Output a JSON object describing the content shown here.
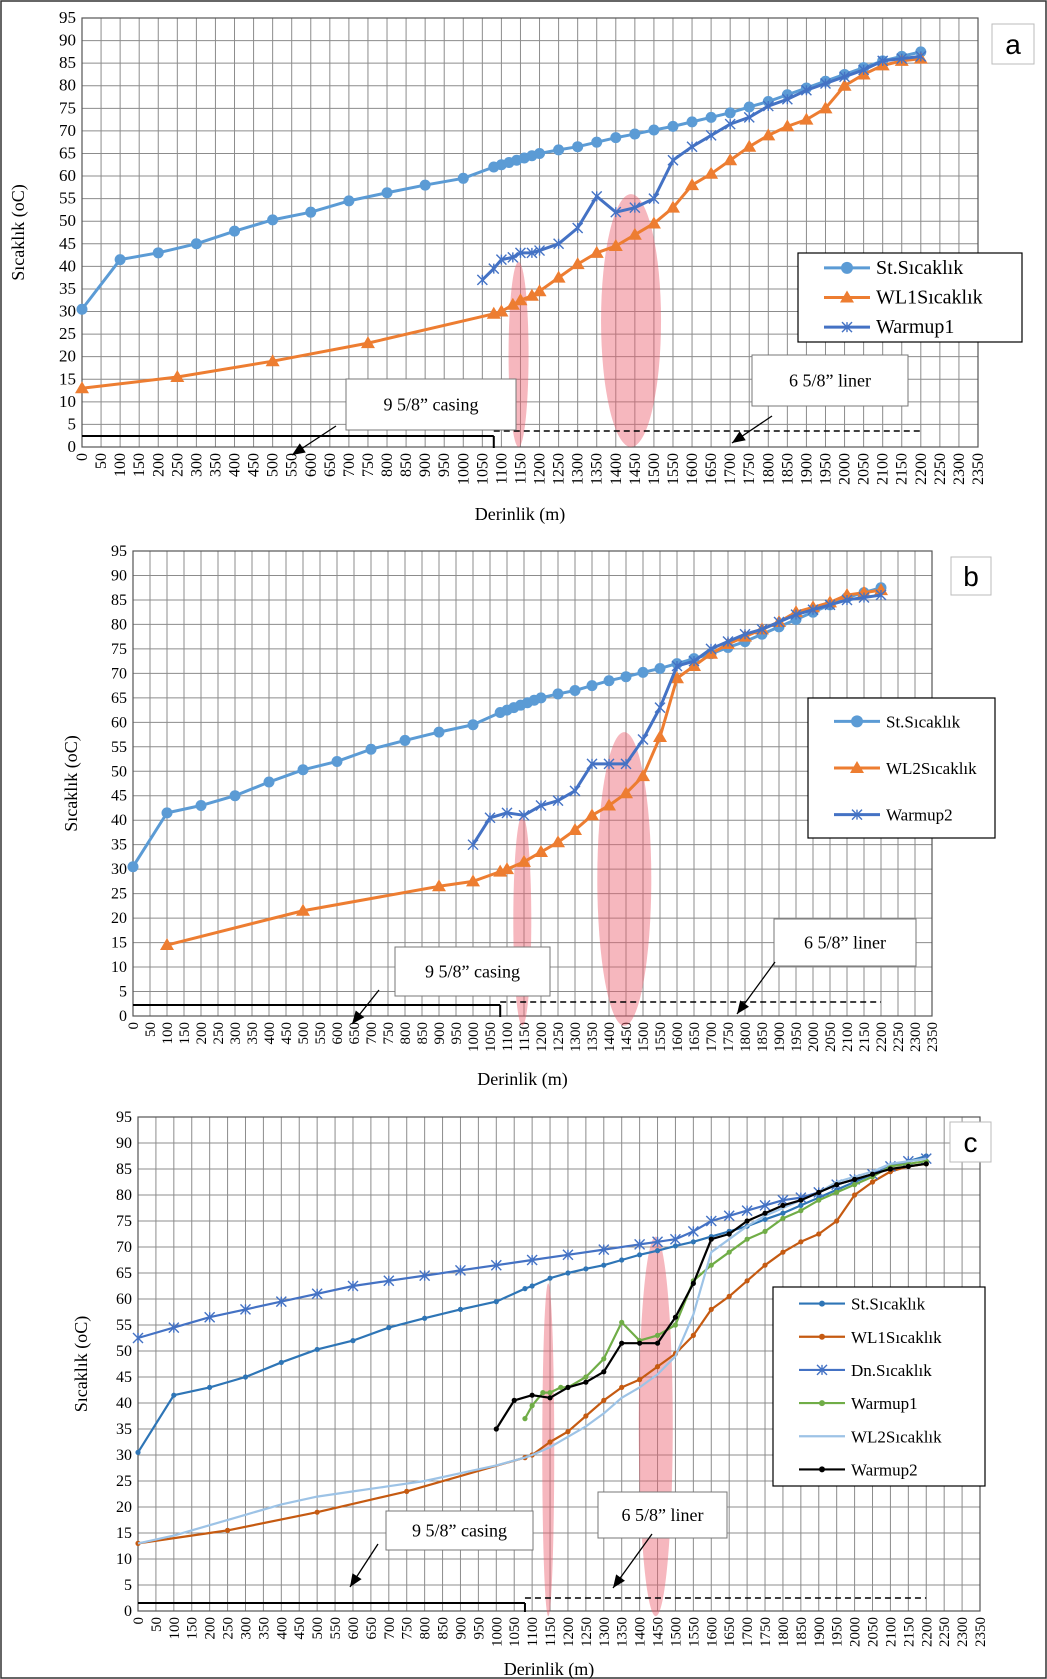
{
  "chart_data": [
    {
      "panel": "a",
      "type": "line",
      "xlabel": "Derinlik (m)",
      "ylabel": "Sıcaklık (oC)",
      "xlim": [
        0,
        2350
      ],
      "xstep": 50,
      "ylim": [
        0,
        95
      ],
      "ystep": 5,
      "grid": true,
      "legend_position": "right",
      "series": [
        {
          "name": "St.Sıcaklık",
          "color": "#5B9BD5",
          "marker": "circle",
          "x": [
            0,
            100,
            200,
            300,
            400,
            500,
            600,
            700,
            800,
            900,
            1000,
            1080,
            1100,
            1120,
            1140,
            1160,
            1180,
            1200,
            1250,
            1300,
            1350,
            1400,
            1450,
            1500,
            1550,
            1600,
            1650,
            1700,
            1750,
            1800,
            1850,
            1900,
            1950,
            2000,
            2050,
            2100,
            2150,
            2200
          ],
          "y": [
            30.5,
            41.5,
            43,
            45,
            47.8,
            50.3,
            52,
            54.5,
            56.3,
            58,
            59.5,
            62,
            62.5,
            63,
            63.5,
            64,
            64.5,
            65,
            65.8,
            66.5,
            67.5,
            68.5,
            69.3,
            70.2,
            71,
            72,
            73,
            74,
            75.3,
            76.5,
            78,
            79.5,
            81,
            82.5,
            84,
            85.5,
            86.5,
            87.5
          ]
        },
        {
          "name": "WL1Sıcaklık",
          "color": "#ED7D31",
          "marker": "triangle",
          "x": [
            0,
            250,
            500,
            750,
            1080,
            1100,
            1130,
            1150,
            1180,
            1200,
            1250,
            1300,
            1350,
            1400,
            1450,
            1500,
            1550,
            1600,
            1650,
            1700,
            1750,
            1800,
            1850,
            1900,
            1950,
            2000,
            2050,
            2100,
            2150,
            2200
          ],
          "y": [
            13,
            15.5,
            19,
            23,
            29.5,
            30,
            31.5,
            32.5,
            33.5,
            34.5,
            37.5,
            40.5,
            43,
            44.5,
            47,
            49.5,
            53,
            58,
            60.5,
            63.5,
            66.5,
            69,
            71,
            72.5,
            75,
            80,
            82.5,
            84.5,
            85.5,
            86
          ]
        },
        {
          "name": "Warmup1",
          "color": "#4472C4",
          "marker": "x",
          "x": [
            1050,
            1080,
            1100,
            1130,
            1150,
            1180,
            1200,
            1250,
            1300,
            1350,
            1400,
            1450,
            1500,
            1550,
            1600,
            1650,
            1700,
            1750,
            1800,
            1850,
            1900,
            1950,
            2000,
            2050,
            2100,
            2150,
            2200
          ],
          "y": [
            37,
            39.5,
            41.5,
            42,
            43,
            43,
            43.5,
            45,
            48.5,
            55.5,
            52,
            53,
            55,
            63.5,
            66.5,
            69,
            71.5,
            73,
            75.5,
            77,
            79,
            80.5,
            82,
            83.5,
            85.5,
            86,
            86.5
          ]
        }
      ],
      "highlights": [
        {
          "x": 1145,
          "y": [
            0,
            41
          ]
        },
        {
          "x": 1440,
          "y": [
            0,
            56
          ]
        }
      ],
      "annotations": [
        {
          "text": "9 5/8” casing",
          "from": 0,
          "to": 1080,
          "style": "solid"
        },
        {
          "text": "6 5/8” liner",
          "from": 1080,
          "to": 2200,
          "style": "dashed"
        }
      ],
      "panel_label": "a"
    },
    {
      "panel": "b",
      "type": "line",
      "xlabel": "Derinlik (m)",
      "ylabel": "Sıcaklık (oC)",
      "xlim": [
        0,
        2350
      ],
      "xstep": 50,
      "ylim": [
        0,
        95
      ],
      "ystep": 5,
      "grid": true,
      "legend_position": "right",
      "series": [
        {
          "name": "St.Sıcaklık",
          "color": "#5B9BD5",
          "marker": "circle",
          "x": [
            0,
            100,
            200,
            300,
            400,
            500,
            600,
            700,
            800,
            900,
            1000,
            1080,
            1100,
            1120,
            1140,
            1160,
            1180,
            1200,
            1250,
            1300,
            1350,
            1400,
            1450,
            1500,
            1550,
            1600,
            1650,
            1700,
            1750,
            1800,
            1850,
            1900,
            1950,
            2000,
            2050,
            2100,
            2150,
            2200
          ],
          "y": [
            30.5,
            41.5,
            43,
            45,
            47.8,
            50.3,
            52,
            54.5,
            56.3,
            58,
            59.5,
            62,
            62.5,
            63,
            63.5,
            64,
            64.5,
            65,
            65.8,
            66.5,
            67.5,
            68.5,
            69.3,
            70.2,
            71,
            72,
            73,
            74,
            75.3,
            76.5,
            78,
            79.5,
            81,
            82.5,
            84,
            85.5,
            86.5,
            87.5
          ]
        },
        {
          "name": "WL2Sıcaklık",
          "color": "#ED7D31",
          "marker": "triangle",
          "x": [
            100,
            500,
            900,
            1000,
            1080,
            1100,
            1150,
            1200,
            1250,
            1300,
            1350,
            1400,
            1450,
            1500,
            1550,
            1600,
            1650,
            1700,
            1750,
            1800,
            1850,
            1900,
            1950,
            2000,
            2050,
            2100,
            2150,
            2200
          ],
          "y": [
            14.5,
            21.5,
            26.5,
            27.5,
            29.5,
            30,
            31.5,
            33.5,
            35.5,
            38,
            41,
            43,
            45.5,
            49,
            57,
            69,
            71.5,
            74,
            76,
            77.5,
            79,
            80.5,
            82.5,
            83.5,
            84.5,
            86,
            86.5,
            87
          ]
        },
        {
          "name": "Warmup2",
          "color": "#4472C4",
          "marker": "x",
          "x": [
            1000,
            1050,
            1100,
            1150,
            1200,
            1250,
            1300,
            1350,
            1400,
            1450,
            1500,
            1550,
            1600,
            1650,
            1700,
            1750,
            1800,
            1850,
            1900,
            1950,
            2000,
            2050,
            2100,
            2150,
            2200
          ],
          "y": [
            35,
            40.5,
            41.5,
            41,
            43,
            44,
            46,
            51.5,
            51.5,
            51.5,
            56.5,
            63,
            71.5,
            72.5,
            75,
            76.5,
            78,
            79,
            80.5,
            82,
            83,
            84,
            85,
            85.5,
            86
          ]
        }
      ],
      "highlights": [
        {
          "x": 1145,
          "y": [
            -2,
            41
          ]
        },
        {
          "x": 1445,
          "y": [
            -2,
            58
          ]
        }
      ],
      "annotations": [
        {
          "text": "9 5/8” casing",
          "from": 0,
          "to": 1080,
          "style": "solid"
        },
        {
          "text": "6 5/8” liner",
          "from": 1080,
          "to": 2200,
          "style": "dashed"
        }
      ],
      "panel_label": "b"
    },
    {
      "panel": "c",
      "type": "line",
      "xlabel": "Derinlik (m)",
      "ylabel": "Sıcaklık (oC)",
      "xlim": [
        0,
        2350
      ],
      "xstep": 50,
      "ylim": [
        0,
        95
      ],
      "ystep": 5,
      "grid": true,
      "legend_position": "right",
      "series": [
        {
          "name": "St.Sıcaklık",
          "color": "#2E75B6",
          "marker": "dot",
          "x": [
            0,
            100,
            200,
            300,
            400,
            500,
            600,
            700,
            800,
            900,
            1000,
            1080,
            1100,
            1150,
            1200,
            1250,
            1300,
            1350,
            1400,
            1450,
            1500,
            1550,
            1600,
            1650,
            1700,
            1750,
            1800,
            1850,
            1900,
            1950,
            2000,
            2050,
            2100,
            2150,
            2200
          ],
          "y": [
            30.5,
            41.5,
            43,
            45,
            47.8,
            50.3,
            52,
            54.5,
            56.3,
            58,
            59.5,
            62,
            62.5,
            64,
            65,
            65.8,
            66.5,
            67.5,
            68.5,
            69.3,
            70.2,
            71,
            72,
            73,
            74,
            75.3,
            76.5,
            78,
            79.5,
            81,
            82.5,
            84,
            85.5,
            86.5,
            87.5
          ]
        },
        {
          "name": "WL1Sıcaklık",
          "color": "#C55A11",
          "marker": "dot",
          "x": [
            0,
            250,
            500,
            750,
            1080,
            1100,
            1150,
            1200,
            1250,
            1300,
            1350,
            1400,
            1450,
            1500,
            1550,
            1600,
            1650,
            1700,
            1750,
            1800,
            1850,
            1900,
            1950,
            2000,
            2050,
            2100,
            2150,
            2200
          ],
          "y": [
            13,
            15.5,
            19,
            23,
            29.5,
            30,
            32.5,
            34.5,
            37.5,
            40.5,
            43,
            44.5,
            47,
            49.5,
            53,
            58,
            60.5,
            63.5,
            66.5,
            69,
            71,
            72.5,
            75,
            80,
            82.5,
            84.5,
            85.5,
            86
          ]
        },
        {
          "name": "Dn.Sıcaklık",
          "color": "#4472C4",
          "marker": "x",
          "x": [
            0,
            100,
            200,
            300,
            400,
            500,
            600,
            700,
            800,
            900,
            1000,
            1100,
            1200,
            1300,
            1400,
            1450,
            1500,
            1550,
            1600,
            1650,
            1700,
            1750,
            1800,
            1850,
            1900,
            1950,
            2000,
            2050,
            2100,
            2150,
            2200
          ],
          "y": [
            52.5,
            54.5,
            56.5,
            58,
            59.5,
            61,
            62.5,
            63.5,
            64.5,
            65.5,
            66.5,
            67.5,
            68.5,
            69.5,
            70.5,
            71,
            71.5,
            73,
            75,
            76,
            77,
            78,
            79,
            79.5,
            80.5,
            82,
            83,
            84,
            85.5,
            86.5,
            87
          ]
        },
        {
          "name": "Warmup1",
          "color": "#70AD47",
          "marker": "dot",
          "x": [
            1080,
            1100,
            1130,
            1150,
            1180,
            1200,
            1250,
            1300,
            1350,
            1400,
            1450,
            1500,
            1550,
            1600,
            1650,
            1700,
            1750,
            1800,
            1850,
            1900,
            1950,
            2000,
            2050,
            2100,
            2150,
            2200
          ],
          "y": [
            37,
            39.5,
            42,
            42,
            43,
            43,
            45,
            48.5,
            55.5,
            52,
            53,
            55,
            63.5,
            66.5,
            69,
            71.5,
            73,
            75.5,
            77,
            79,
            80.5,
            82,
            83.5,
            85.5,
            86,
            86.5
          ]
        },
        {
          "name": "WL2Sıcaklık",
          "color": "#9DC3E6",
          "marker": "none",
          "x": [
            0,
            100,
            200,
            300,
            400,
            500,
            600,
            700,
            800,
            900,
            1000,
            1080,
            1100,
            1150,
            1200,
            1250,
            1300,
            1350,
            1400,
            1450,
            1500,
            1550,
            1600,
            1650,
            1700,
            1750,
            1800,
            1850,
            1900,
            1950,
            2000,
            2050,
            2100,
            2150,
            2200
          ],
          "y": [
            13,
            14.5,
            16.5,
            18.5,
            20.5,
            22,
            23,
            24,
            25,
            26.5,
            28,
            29.5,
            30,
            31.5,
            33.5,
            35.5,
            38,
            41,
            43,
            45.5,
            49,
            57,
            69,
            71.5,
            74,
            76,
            77.5,
            79,
            80.5,
            82.5,
            83.5,
            84.5,
            86,
            86.5,
            87
          ]
        },
        {
          "name": "Warmup2",
          "color": "#000000",
          "marker": "dot",
          "x": [
            1000,
            1050,
            1100,
            1150,
            1200,
            1250,
            1300,
            1350,
            1400,
            1450,
            1500,
            1550,
            1600,
            1650,
            1700,
            1750,
            1800,
            1850,
            1900,
            1950,
            2000,
            2050,
            2100,
            2150,
            2200
          ],
          "y": [
            35,
            40.5,
            41.5,
            41,
            43,
            44,
            46,
            51.5,
            51.5,
            51.5,
            56.5,
            63,
            71.5,
            72.5,
            75,
            76.5,
            78,
            79,
            80.5,
            82,
            83,
            84,
            85,
            85.5,
            86
          ]
        }
      ],
      "highlights": [
        {
          "x": 1145,
          "y": [
            -1,
            63
          ]
        },
        {
          "x": 1445,
          "y": [
            -1,
            72
          ]
        }
      ],
      "annotations": [
        {
          "text": "9 5/8” casing",
          "from": 0,
          "to": 1080,
          "style": "solid"
        },
        {
          "text": "6 5/8” liner",
          "from": 1080,
          "to": 2200,
          "style": "dashed"
        }
      ],
      "panel_label": "c"
    }
  ]
}
